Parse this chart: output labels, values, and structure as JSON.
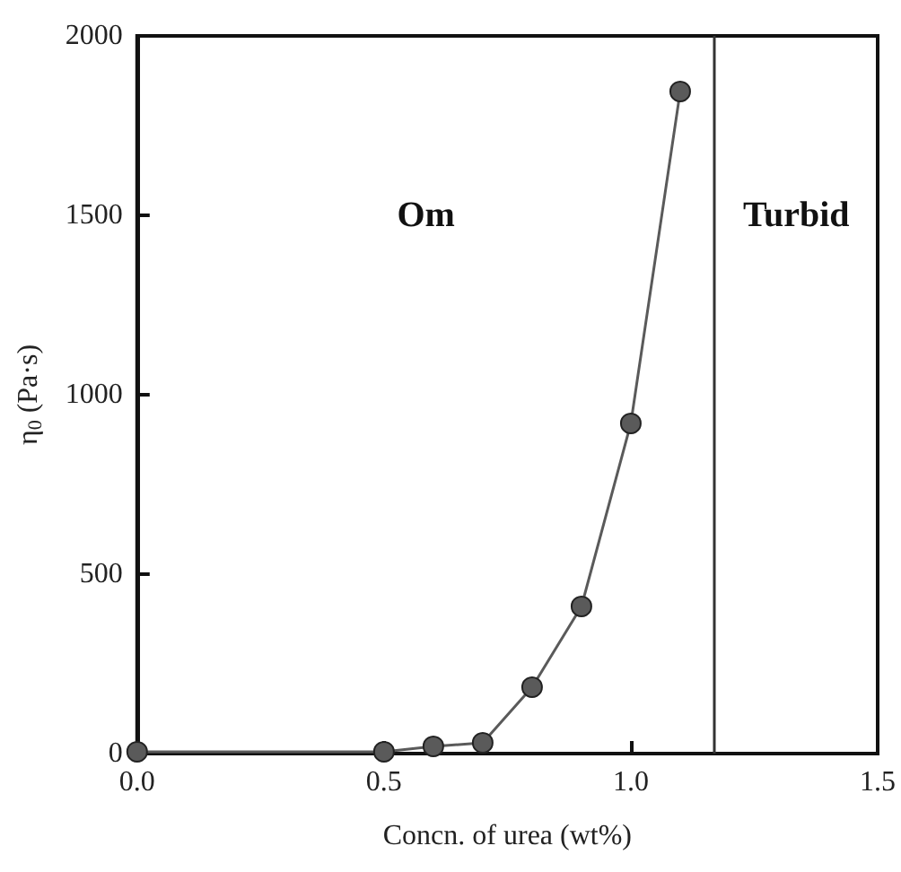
{
  "chart_data": {
    "type": "line",
    "xlabel": "Concn. of urea (wt%)",
    "ylabel": "η$_{0}$ (Pa·s)",
    "x": [
      0,
      0.5,
      0.6,
      0.7,
      0.8,
      0.9,
      1.0,
      1.1
    ],
    "series": [
      {
        "color": "#5a5a5a",
        "values": [
          5,
          5,
          20,
          30,
          185,
          410,
          920,
          1845
        ]
      }
    ],
    "xlim": [
      0,
      1.5
    ],
    "xticks": [
      {
        "value": 0,
        "label": "0.0"
      },
      {
        "value": 0.5,
        "label": "0.5"
      },
      {
        "value": 1,
        "label": "1.0"
      },
      {
        "value": 1.5,
        "label": "1.5"
      }
    ],
    "ylim": [
      0,
      2000
    ],
    "yticks": [
      0,
      500,
      1000,
      1500,
      2000
    ],
    "ref_lines": [
      {
        "axis": "x",
        "value": 1.17
      }
    ],
    "annotations": [
      "Om",
      "Turbid"
    ],
    "marker": "circle",
    "line_style": "solid",
    "grid": false
  }
}
